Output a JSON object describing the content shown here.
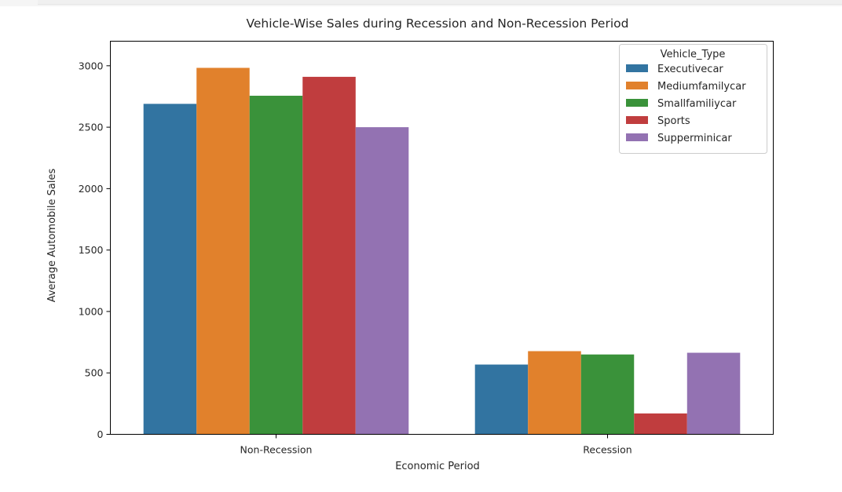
{
  "chart_data": {
    "type": "bar",
    "title": "Vehicle-Wise Sales during Recession and Non-Recession Period",
    "xlabel": "Economic Period",
    "ylabel": "Average Automobile Sales",
    "categories": [
      "Non-Recession",
      "Recession"
    ],
    "ylim": [
      0,
      3200
    ],
    "yticks": [
      0,
      500,
      1000,
      1500,
      2000,
      2500,
      3000
    ],
    "grid": false,
    "legend": {
      "title": "Vehicle_Type",
      "placement": "top-right"
    },
    "series": [
      {
        "name": "Executivecar",
        "color": "#3274a1",
        "values": [
          2690,
          568
        ]
      },
      {
        "name": "Mediumfamilycar",
        "color": "#e1812c",
        "values": [
          2983,
          677
        ]
      },
      {
        "name": "Smallfamiliycar",
        "color": "#3a923a",
        "values": [
          2756,
          650
        ]
      },
      {
        "name": "Sports",
        "color": "#c03d3e",
        "values": [
          2910,
          170
        ]
      },
      {
        "name": "Supperminicar",
        "color": "#9372b2",
        "values": [
          2500,
          664
        ]
      }
    ]
  }
}
